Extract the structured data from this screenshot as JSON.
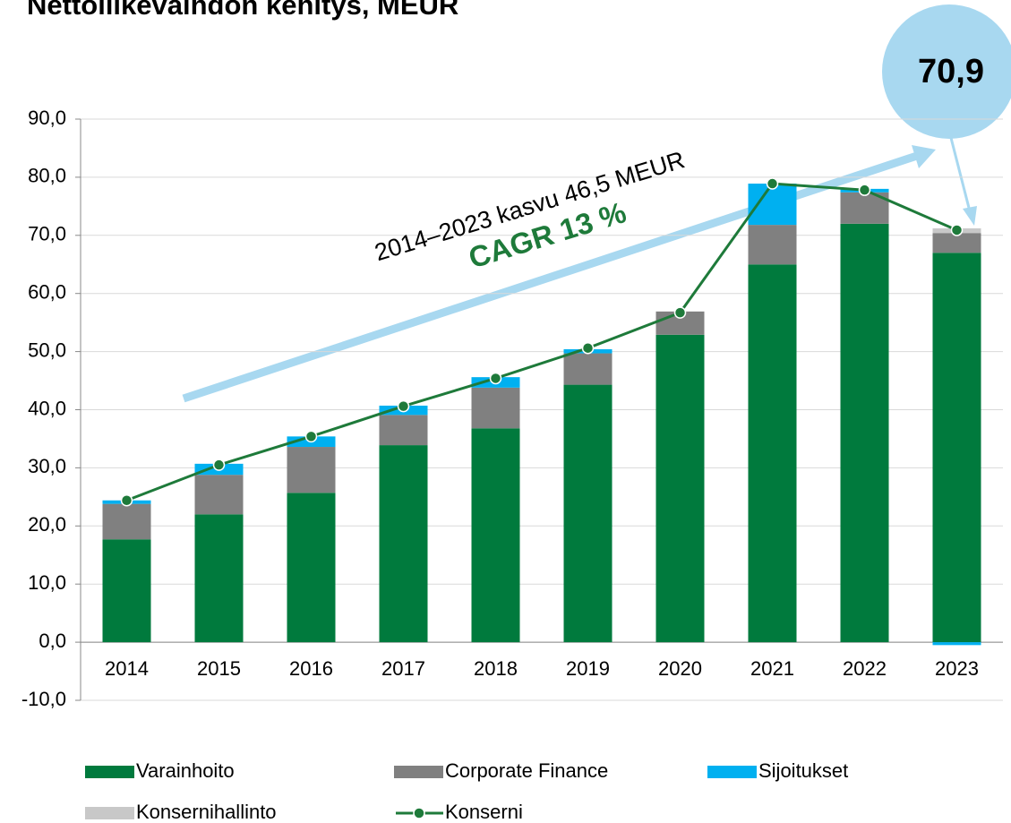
{
  "chart_data": {
    "type": "stacked_bar_line",
    "title": "Nettoliikevaihdon kehitys, MEUR",
    "categories": [
      "2014",
      "2015",
      "2016",
      "2017",
      "2018",
      "2019",
      "2020",
      "2021",
      "2022",
      "2023"
    ],
    "series": [
      {
        "name": "Varainhoito",
        "color": "#007a3d",
        "values": [
          17.7,
          22.0,
          25.7,
          33.9,
          36.8,
          44.3,
          52.9,
          65.0,
          72.0,
          67.0
        ]
      },
      {
        "name": "Corporate Finance",
        "color": "#808080",
        "values": [
          6.1,
          6.8,
          7.9,
          5.2,
          7.0,
          5.4,
          4.0,
          6.8,
          5.4,
          3.4
        ]
      },
      {
        "name": "Sijoitukset",
        "color": "#00b0f0",
        "values": [
          0.6,
          1.9,
          1.8,
          1.6,
          1.8,
          0.7,
          0,
          7.1,
          0.6,
          -0.5
        ]
      },
      {
        "name": "Konsernihallinto",
        "color": "#c8c8c8",
        "values": [
          0,
          0,
          0,
          0,
          0,
          0,
          0,
          0,
          0,
          0.8
        ]
      },
      {
        "name": "Konserni",
        "color": "#1e7a3a",
        "type": "line",
        "values": [
          24.4,
          30.5,
          35.4,
          40.6,
          45.4,
          50.6,
          56.7,
          78.9,
          77.8,
          70.9
        ]
      }
    ],
    "ylim": [
      -10,
      90
    ],
    "yticks": [
      {
        "value": -10,
        "label": "-10,0"
      },
      {
        "value": 0,
        "label": "0,0"
      },
      {
        "value": 10,
        "label": "10,0"
      },
      {
        "value": 20,
        "label": "20,0"
      },
      {
        "value": 30,
        "label": "30,0"
      },
      {
        "value": 40,
        "label": "40,0"
      },
      {
        "value": 50,
        "label": "50,0"
      },
      {
        "value": 60,
        "label": "60,0"
      },
      {
        "value": 70,
        "label": "70,0"
      },
      {
        "value": 80,
        "label": "80,0"
      },
      {
        "value": 90,
        "label": "90,0"
      }
    ],
    "grid": true,
    "annotations": [
      "2014–2023 kasvu 46,5 MEUR",
      "CAGR 13 %",
      "70,9"
    ]
  }
}
